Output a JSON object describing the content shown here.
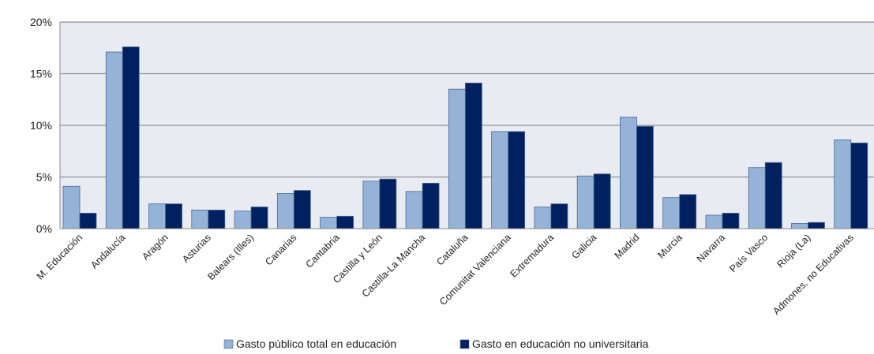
{
  "chart_data": {
    "type": "bar",
    "title": "",
    "xlabel": "",
    "ylabel": "",
    "ylim": [
      0,
      20
    ],
    "y_ticks": [
      "0%",
      "5%",
      "10%",
      "15%",
      "20%"
    ],
    "grid": true,
    "legend_position": "bottom",
    "categories": [
      "M. Educación",
      "Andalucía",
      "Aragón",
      "Asturias",
      "Balears (Illes)",
      "Canarias",
      "Cantabria",
      "Castilla y León",
      "Castilla-La Mancha",
      "Cataluña",
      "Comunitat Valenciana",
      "Extremadura",
      "Galicia",
      "Madrid",
      "Murcia",
      "Navarra",
      "País Vasco",
      "Rioja (La)",
      "Admones. no Educativas"
    ],
    "series": [
      {
        "name": "Gasto público total en educación",
        "color": "#95B3D7",
        "values": [
          4.1,
          17.1,
          2.4,
          1.8,
          1.7,
          3.4,
          1.1,
          4.6,
          3.6,
          13.5,
          9.4,
          2.1,
          5.1,
          10.8,
          3.0,
          1.3,
          5.9,
          0.5,
          8.6
        ]
      },
      {
        "name": "Gasto en educación no universitaria",
        "color": "#002060",
        "values": [
          1.5,
          17.6,
          2.4,
          1.8,
          2.1,
          3.7,
          1.2,
          4.8,
          4.4,
          14.1,
          9.4,
          2.4,
          5.3,
          9.9,
          3.3,
          1.5,
          6.4,
          0.6,
          8.3
        ]
      }
    ]
  }
}
